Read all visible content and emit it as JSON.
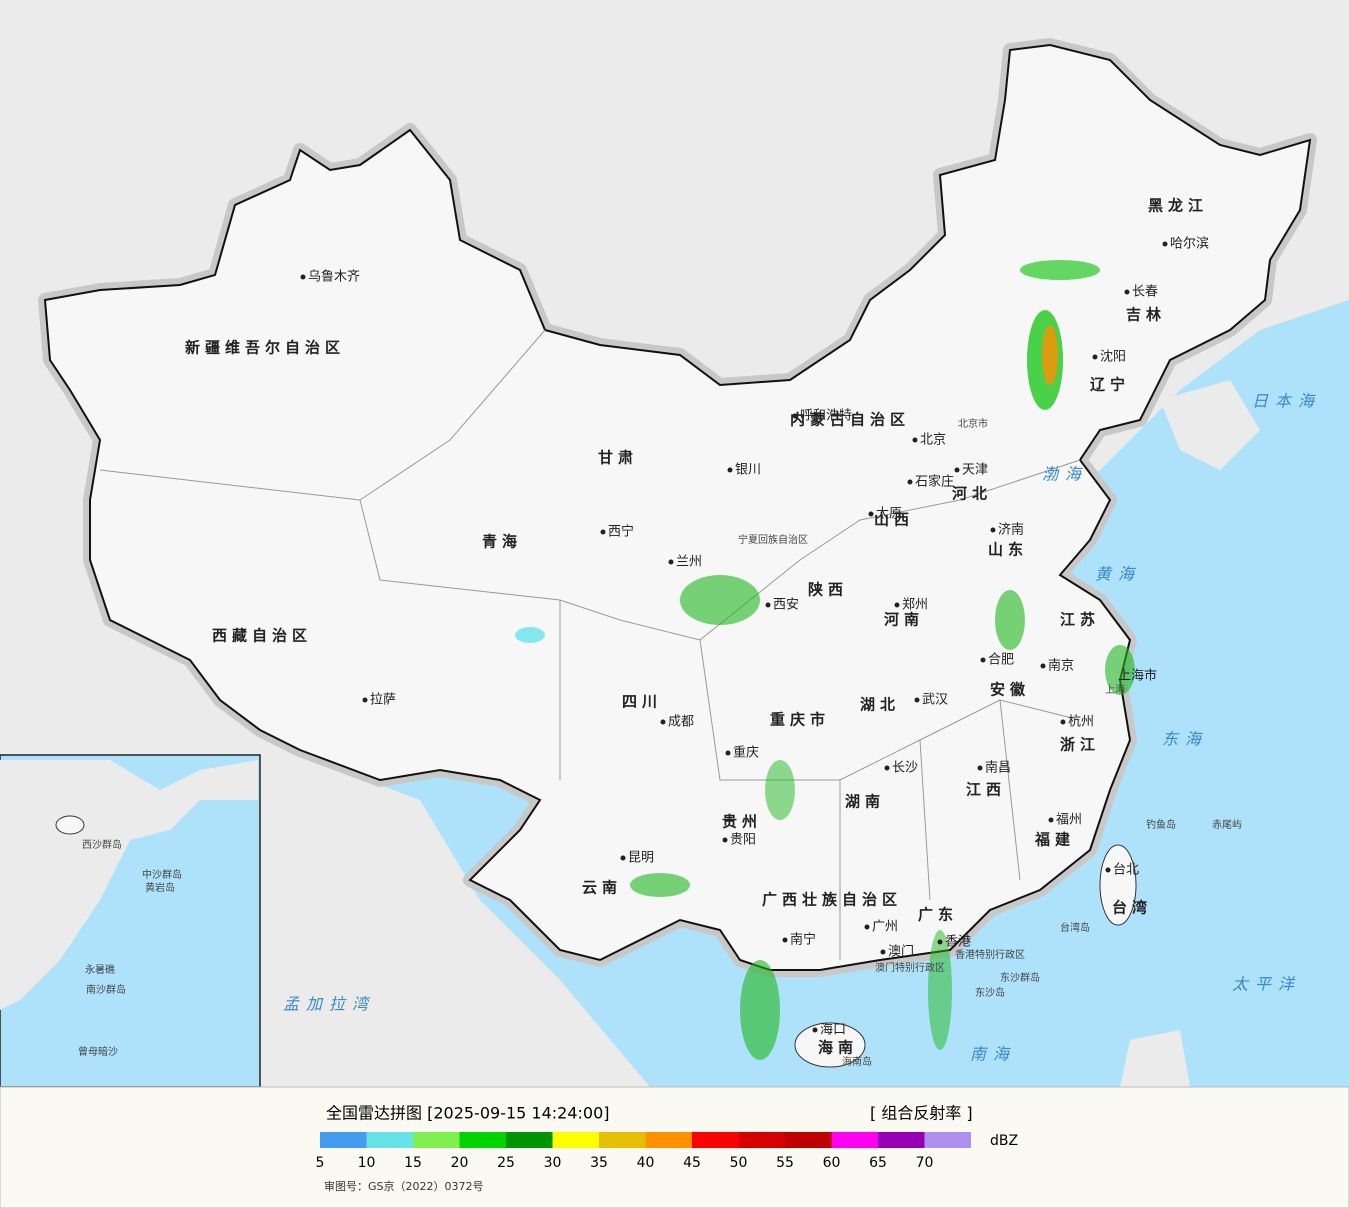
{
  "map": {
    "labels": [
      "新疆维吾尔自治区",
      "乌鲁木齐",
      "西藏自治区",
      "拉萨",
      "青海",
      "西宁",
      "甘肃",
      "内蒙古自治区",
      "呼和浩特",
      "银川",
      "宁夏回族自治区",
      "兰州",
      "西安",
      "陕西",
      "山西",
      "太原",
      "石家庄",
      "河北",
      "北京",
      "北京市",
      "天津",
      "济南",
      "山东",
      "郑州",
      "河南",
      "江苏",
      "南京",
      "合肥",
      "安徽",
      "上海市",
      "上海",
      "杭州",
      "浙江",
      "湖北",
      "武汉",
      "四川",
      "成都",
      "重庆市",
      "重庆",
      "湖南",
      "长沙",
      "江西",
      "南昌",
      "福建",
      "福州",
      "贵州",
      "贵阳",
      "云南",
      "昆明",
      "广西壮族自治区",
      "南宁",
      "广东",
      "广州",
      "澳门",
      "香港",
      "香港特别行政区",
      "澳门特别行政区",
      "海南",
      "海口",
      "海南岛",
      "台湾",
      "台北",
      "台湾岛",
      "钓鱼岛",
      "赤尾屿",
      "东沙群岛",
      "东沙岛",
      "黑龙江",
      "哈尔滨",
      "吉林",
      "长春",
      "辽宁",
      "沈阳",
      "日本海",
      "渤海",
      "黄海",
      "东海",
      "太平洋",
      "南海",
      "孟加拉湾",
      "西沙群岛",
      "中沙群岛",
      "黄岩岛",
      "南沙群岛",
      "永暑礁",
      "曾母暗沙"
    ]
  },
  "legend": {
    "title": "全国雷达拼图 [2025-09-15 14:24:00]",
    "product": "[ 组合反射率 ]",
    "unit": "dBZ",
    "ticks": [
      5,
      10,
      15,
      20,
      25,
      30,
      35,
      40,
      45,
      50,
      55,
      60,
      65,
      70
    ],
    "colors": [
      "#449cf0",
      "#66e2e8",
      "#7ef050",
      "#00d400",
      "#009400",
      "#ffff00",
      "#e6c000",
      "#ff9000",
      "#ff0000",
      "#d60000",
      "#c00000",
      "#ff00f0",
      "#9600b4",
      "#ad90f0"
    ],
    "approval": "审图号：GS京（2022）0372号"
  }
}
